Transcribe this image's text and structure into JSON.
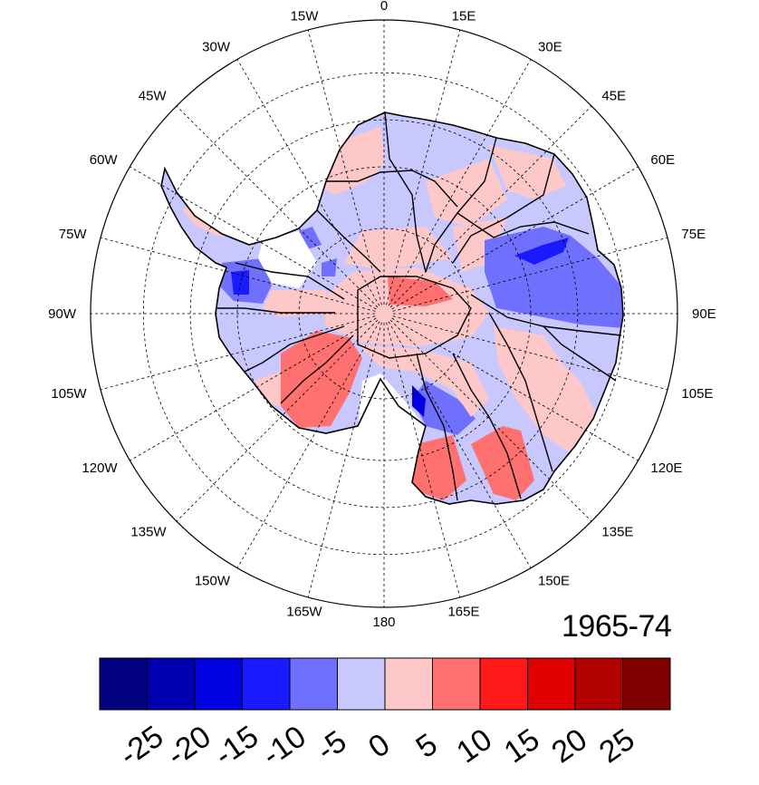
{
  "map": {
    "projection": "south-polar-stereographic",
    "longitude_labels": [
      "0",
      "15E",
      "30E",
      "45E",
      "60E",
      "75E",
      "90E",
      "105E",
      "120E",
      "135E",
      "150E",
      "165E",
      "180",
      "165W",
      "150W",
      "135W",
      "120W",
      "105W",
      "90W",
      "75W",
      "60W",
      "45W",
      "30W",
      "15W"
    ],
    "period_label": "1965-74"
  },
  "legend": {
    "colors": [
      "#000080",
      "#0000b0",
      "#0000e0",
      "#1a1aff",
      "#7070ff",
      "#c8c8ff",
      "#ffc8c8",
      "#ff7070",
      "#ff1a1a",
      "#e00000",
      "#b00000",
      "#800000"
    ],
    "tick_labels": [
      "-25",
      "-20",
      "-15",
      "-10",
      "-5",
      "0",
      "5",
      "10",
      "15",
      "20",
      "25"
    ]
  },
  "colors": {
    "strong_blue": "#1a1aff",
    "mid_blue": "#7070ff",
    "light_blue": "#c8c8ff",
    "light_red": "#ffc8c8",
    "mid_red": "#ff7070",
    "strong_red": "#ff1a1a"
  }
}
